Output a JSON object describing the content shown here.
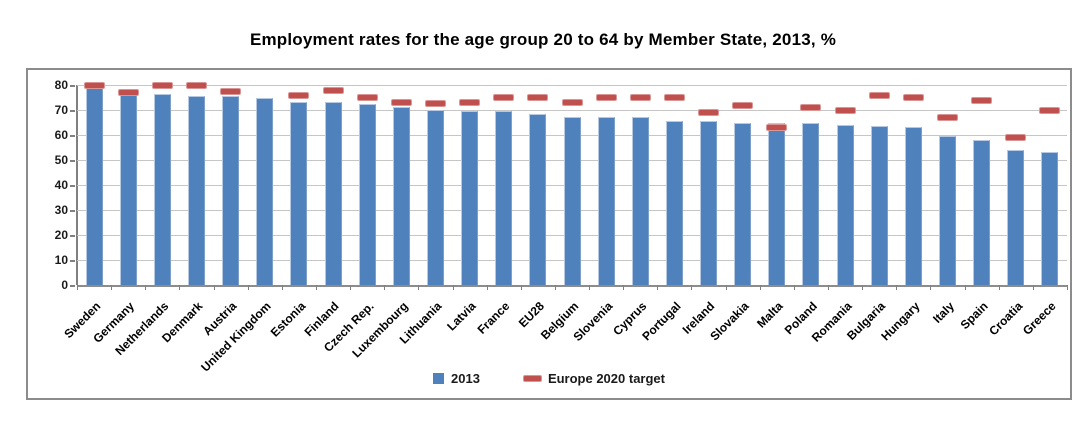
{
  "chart_data": {
    "type": "bar",
    "title": "Employment rates for the age group 20 to 64 by Member State, 2013, %",
    "categories": [
      "Sweden",
      "Germany",
      "Netherlands",
      "Denmark",
      "Austria",
      "United Kingdom",
      "Estonia",
      "Finland",
      "Czech Rep.",
      "Luxembourg",
      "Lithuania",
      "Latvia",
      "France",
      "EU28",
      "Belgium",
      "Slovenia",
      "Cyprus",
      "Portugal",
      "Ireland",
      "Slovakia",
      "Malta",
      "Poland",
      "Romania",
      "Bulgaria",
      "Hungary",
      "Italy",
      "Spain",
      "Croatia",
      "Greece"
    ],
    "series": [
      {
        "name": "2013",
        "type": "bar",
        "color": "#4f81bd",
        "values": [
          79.8,
          77.1,
          76.5,
          75.6,
          75.5,
          74.9,
          73.3,
          73.3,
          72.5,
          71.1,
          69.9,
          69.7,
          69.5,
          68.4,
          67.2,
          67.2,
          67.1,
          65.6,
          65.5,
          65.0,
          64.9,
          64.9,
          63.9,
          63.5,
          63.2,
          59.8,
          58.2,
          53.9,
          53.2
        ]
      },
      {
        "name": "Europe 2020 target",
        "type": "dash",
        "color": "#c0504d",
        "values": [
          80,
          77,
          80,
          80,
          77.5,
          null,
          76,
          78,
          75,
          73,
          72.8,
          73,
          75,
          75,
          73.2,
          75,
          75,
          75,
          69,
          72,
          62.9,
          71,
          70,
          76,
          75,
          67,
          74,
          59,
          70
        ]
      }
    ],
    "ylim": [
      0,
      80
    ],
    "ytick_step": 10,
    "grid": true,
    "legend_position": "bottom",
    "xlabel": "",
    "ylabel": "",
    "colors": {
      "bar": "#4f81bd",
      "target": "#c0504d",
      "gridline": "#c6c6c6",
      "axis": "#808080",
      "frame_border": "#8c8c8c",
      "text": "#000000"
    }
  }
}
